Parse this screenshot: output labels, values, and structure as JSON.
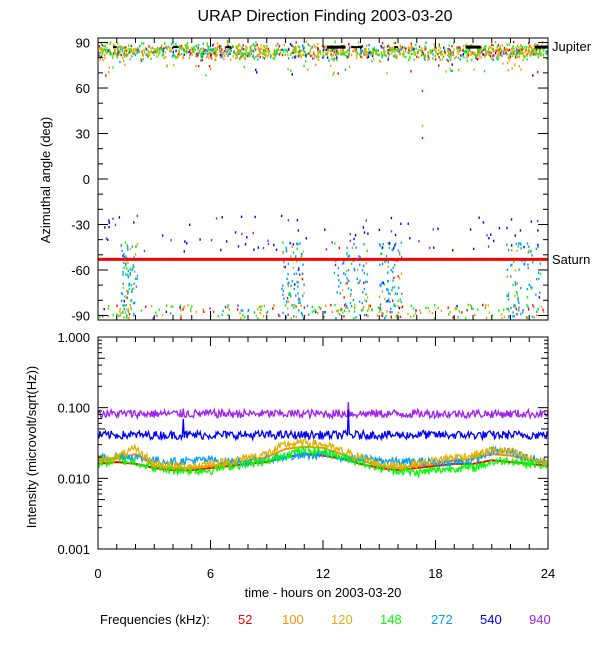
{
  "chart_data": [
    {
      "type": "scatter",
      "panel": "direction",
      "title": "URAP Direction Finding  2003-03-20",
      "ylabel": "Azimuthal angle (deg)",
      "xlim": [
        0,
        24
      ],
      "ylim": [
        -93,
        93
      ],
      "yticks": [
        {
          "value": 90,
          "label": "90"
        },
        {
          "value": 60,
          "label": "60"
        },
        {
          "value": 30,
          "label": "30"
        },
        {
          "value": 0,
          "label": "0"
        },
        {
          "value": -30,
          "label": "-30"
        },
        {
          "value": -60,
          "label": "-60"
        },
        {
          "value": -90,
          "label": "-90"
        }
      ],
      "reference_lines": [
        {
          "name": "Jupiter",
          "label": "Jupiter",
          "value": 87,
          "color": "#000000"
        },
        {
          "name": "Saturn",
          "label": "Saturn",
          "value": -53,
          "color": "#ff0000"
        }
      ],
      "series_note": "Scattered points per frequency; near-Jupiter cluster at ~82-92 deg all day, near-Saturn/low-angle clusters at ~1.5-2.0h, 10-11h, 13-14.5h, 15-16h, 22-23.5h"
    },
    {
      "type": "line",
      "panel": "intensity",
      "ylabel": "Intensity (microvolt/sqrt(Hz))",
      "xlabel": "time - hours on 2003-03-20",
      "xlim": [
        0,
        24
      ],
      "ylim": [
        0.001,
        1.0
      ],
      "yscale": "log",
      "xticks": [
        {
          "value": 0,
          "label": "0"
        },
        {
          "value": 6,
          "label": "6"
        },
        {
          "value": 12,
          "label": "12"
        },
        {
          "value": 18,
          "label": "18"
        },
        {
          "value": 24,
          "label": "24"
        }
      ],
      "yticks": [
        {
          "value": 1.0,
          "label": "1.000"
        },
        {
          "value": 0.1,
          "label": "0.100"
        },
        {
          "value": 0.01,
          "label": "0.010"
        },
        {
          "value": 0.001,
          "label": "0.001"
        }
      ],
      "series": [
        {
          "name": "940",
          "color": "#a020f0",
          "x": [
            0,
            4.5,
            4.55,
            4.6,
            13.3,
            13.35,
            13.4,
            24
          ],
          "values": [
            0.082,
            0.082,
            0.095,
            0.082,
            0.082,
            0.12,
            0.082,
            0.082
          ]
        },
        {
          "name": "540",
          "color": "#0000ff",
          "x": [
            0,
            4.5,
            4.55,
            4.6,
            13.3,
            13.35,
            13.4,
            17.3,
            17.35,
            17.4,
            24
          ],
          "values": [
            0.041,
            0.041,
            0.075,
            0.041,
            0.041,
            0.09,
            0.041,
            0.041,
            0.05,
            0.041,
            0.041
          ]
        },
        {
          "name": "272",
          "color": "#00a0ff",
          "x": [
            0,
            1,
            2,
            3,
            4,
            5,
            6,
            7,
            8,
            9,
            10,
            11,
            12,
            13,
            14,
            15,
            16,
            17,
            18,
            19,
            20,
            21,
            22,
            23,
            24
          ],
          "values": [
            0.019,
            0.021,
            0.02,
            0.018,
            0.017,
            0.018,
            0.018,
            0.017,
            0.017,
            0.019,
            0.02,
            0.021,
            0.022,
            0.02,
            0.019,
            0.018,
            0.017,
            0.017,
            0.017,
            0.017,
            0.018,
            0.024,
            0.024,
            0.019,
            0.017
          ]
        },
        {
          "name": "148",
          "color": "#00ff00",
          "x": [
            0,
            1,
            2,
            3,
            4,
            5,
            6,
            7,
            8,
            9,
            10,
            11,
            12,
            13,
            14,
            15,
            16,
            17,
            18,
            19,
            20,
            21,
            22,
            23,
            24
          ],
          "values": [
            0.016,
            0.018,
            0.017,
            0.014,
            0.013,
            0.013,
            0.013,
            0.015,
            0.016,
            0.017,
            0.022,
            0.025,
            0.024,
            0.02,
            0.017,
            0.014,
            0.013,
            0.012,
            0.013,
            0.014,
            0.014,
            0.017,
            0.018,
            0.016,
            0.015
          ]
        },
        {
          "name": "120",
          "color": "#e0b000",
          "x": [
            0,
            1,
            2,
            3,
            4,
            5,
            6,
            7,
            8,
            9,
            10,
            11,
            12,
            13,
            14,
            15,
            16,
            17,
            18,
            19,
            20,
            21,
            22,
            23,
            24
          ],
          "values": [
            0.018,
            0.02,
            0.026,
            0.016,
            0.015,
            0.015,
            0.016,
            0.017,
            0.02,
            0.022,
            0.03,
            0.032,
            0.03,
            0.024,
            0.02,
            0.016,
            0.015,
            0.016,
            0.018,
            0.02,
            0.021,
            0.025,
            0.024,
            0.019,
            0.017
          ]
        },
        {
          "name": "100",
          "color": "#ff9000",
          "x": [
            0,
            1,
            2,
            3,
            4,
            5,
            6,
            7,
            8,
            9,
            10,
            11,
            12,
            13,
            14,
            15,
            16,
            17,
            18,
            19,
            20,
            21,
            22,
            23,
            24
          ],
          "values": [
            0.017,
            0.019,
            0.022,
            0.015,
            0.014,
            0.014,
            0.015,
            0.016,
            0.018,
            0.02,
            0.026,
            0.028,
            0.027,
            0.022,
            0.018,
            0.015,
            0.014,
            0.015,
            0.016,
            0.018,
            0.019,
            0.022,
            0.021,
            0.018,
            0.016
          ]
        },
        {
          "name": "52",
          "color": "#ff0000",
          "x": [
            0,
            1,
            2,
            3,
            4,
            5,
            6,
            7,
            8,
            9,
            10,
            11,
            12,
            13,
            14,
            15,
            16,
            17,
            18,
            19,
            20,
            21,
            22,
            23,
            24
          ],
          "values": [
            0.016,
            0.017,
            0.016,
            0.014,
            0.013,
            0.013,
            0.014,
            0.015,
            0.016,
            0.017,
            0.02,
            0.022,
            0.021,
            0.019,
            0.016,
            0.014,
            0.013,
            0.014,
            0.015,
            0.016,
            0.016,
            0.018,
            0.017,
            0.016,
            0.015
          ]
        }
      ]
    }
  ],
  "legend": {
    "title": "Frequencies (kHz):",
    "items": [
      {
        "label": "52",
        "color": "#ff0000"
      },
      {
        "label": "100",
        "color": "#ff9000"
      },
      {
        "label": "120",
        "color": "#e0b000"
      },
      {
        "label": "148",
        "color": "#00ff00"
      },
      {
        "label": "272",
        "color": "#00a0ff"
      },
      {
        "label": "540",
        "color": "#0000ff"
      },
      {
        "label": "940",
        "color": "#a020f0"
      }
    ]
  }
}
